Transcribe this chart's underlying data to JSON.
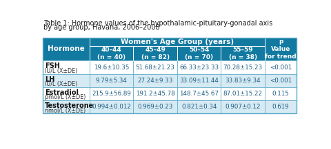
{
  "title_line1": "Table 1: Hormone values of the hypothalamic-pituitary-gonadal axis",
  "title_line2": "by age group, Havana, 2006–2008",
  "header_main": "Women's Age Group (years)",
  "col_headers": [
    "40–44\n(n = 40)",
    "45–49\n(n = 82)",
    "50–54\n(n = 70)",
    "55–59\n(n = 38)"
  ],
  "p_header": "p\nValue\nfor trend",
  "row_labels": [
    [
      "FSH",
      "IU/L (X±DE)"
    ],
    [
      "LH",
      "IU/L (X±DE)"
    ],
    [
      "Estradiol",
      "pmol/L (X±DE)"
    ],
    [
      "Testosterone",
      "nmol/L (X±DE)"
    ]
  ],
  "data": [
    [
      "19.6±10.35",
      "51.68±21.23",
      "66.33±23.33",
      "70.28±15.23",
      "<0.001"
    ],
    [
      "9.79±5.34",
      "27.24±9.33",
      "33.09±11.44",
      "33.83±9.34",
      "<0.001"
    ],
    [
      "215.9±56.89",
      "191.2±45.78",
      "148.7±45.67",
      "87.01±15.22",
      "0.115"
    ],
    [
      "0.994±0.012",
      "0.969±0.23",
      "0.821±0.34",
      "0.907±0.12",
      "0.619"
    ]
  ],
  "header_bg": "#1279a0",
  "header_text": "#ffffff",
  "row_bg_white": "#ffffff",
  "row_bg_blue": "#d6eaf4",
  "data_text_color": "#1a5a80",
  "label_bold_color": "#1a1a1a",
  "label_sub_color": "#333333",
  "title_color": "#1a1a1a",
  "border_color": "#5aaac8",
  "divider_color": "#1279a0"
}
